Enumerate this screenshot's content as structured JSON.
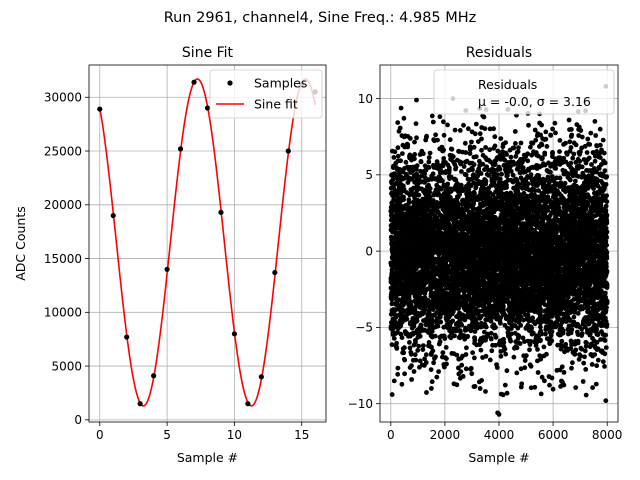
{
  "figure": {
    "suptitle": "Run 2961, channel4, Sine Freq.: 4.985 MHz"
  },
  "colors": {
    "fit": "#ff0000",
    "points": "#000000",
    "grid": "#b0b0b0"
  },
  "chart_data": [
    {
      "type": "line",
      "title": "Sine Fit",
      "xlabel": "Sample #",
      "ylabel": "ADC Counts",
      "xlim": [
        -0.8,
        16.8
      ],
      "ylim": [
        -200,
        33000
      ],
      "xticks": [
        0,
        5,
        10,
        15
      ],
      "yticks": [
        0,
        5000,
        10000,
        15000,
        20000,
        25000,
        30000
      ],
      "grid": true,
      "legend": {
        "placement": "upper-right",
        "entries": [
          "Samples",
          "Sine fit"
        ]
      },
      "series": [
        {
          "name": "Samples",
          "kind": "scatter",
          "x": [
            0,
            1,
            2,
            3,
            4,
            5,
            6,
            7,
            8,
            9,
            10,
            11,
            12,
            13,
            14,
            15,
            16
          ],
          "y": [
            28900,
            19000,
            7700,
            1500,
            4100,
            14000,
            25200,
            31400,
            29000,
            19300,
            8000,
            1500,
            4000,
            13700,
            25000,
            31200,
            30500
          ]
        },
        {
          "name": "Sine fit",
          "kind": "line",
          "model": {
            "amplitude": 15200,
            "offset": 16500,
            "period_samples": 8.0225,
            "peak_at_sample": 7.25
          },
          "x_range": [
            0,
            16
          ]
        }
      ]
    },
    {
      "type": "scatter",
      "title": "Residuals",
      "xlabel": "Sample #",
      "ylabel": "",
      "xlim": [
        -400,
        8400
      ],
      "ylim": [
        -11.2,
        12.2
      ],
      "xticks": [
        0,
        2000,
        4000,
        6000,
        8000
      ],
      "yticks": [
        -10,
        -5,
        0,
        5,
        10
      ],
      "grid": true,
      "legend": {
        "placement": "upper-right",
        "entries": [
          "Residuals",
          "μ = -0.0, σ = 3.16"
        ]
      },
      "stats": {
        "mean": -0.0,
        "sigma": 3.16,
        "n_points": 8000
      },
      "outliers": [
        {
          "x": 950,
          "y": 9.9
        },
        {
          "x": 2300,
          "y": 10.0
        },
        {
          "x": 7950,
          "y": 10.8
        },
        {
          "x": 3950,
          "y": -10.6
        },
        {
          "x": 4000,
          "y": -10.7
        },
        {
          "x": 7950,
          "y": -9.8
        },
        {
          "x": 50,
          "y": -9.4
        },
        {
          "x": 3500,
          "y": -9.2
        },
        {
          "x": 1500,
          "y": -9.0
        },
        {
          "x": 6350,
          "y": -8.6
        },
        {
          "x": 5500,
          "y": 9.0
        },
        {
          "x": 7200,
          "y": 9.2
        }
      ]
    }
  ]
}
